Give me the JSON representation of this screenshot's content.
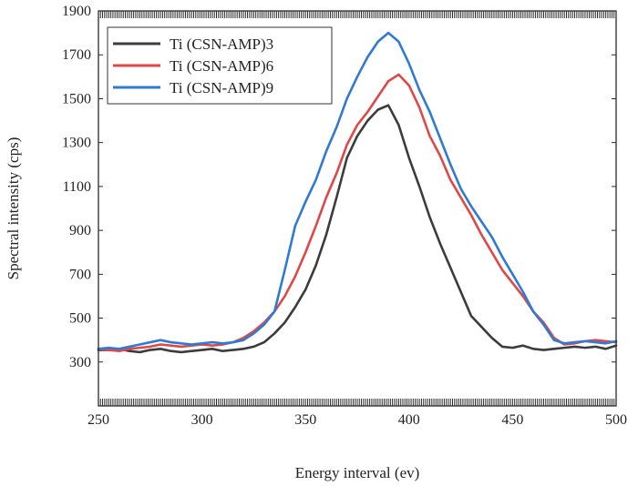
{
  "chart_data": {
    "type": "line",
    "title": "",
    "xlabel": "Energy interval (ev)",
    "ylabel": "Spectral intensity (cps)",
    "xlim": [
      250,
      500
    ],
    "ylim": [
      100,
      1900
    ],
    "x_ticks": [
      250,
      300,
      350,
      400,
      450,
      500
    ],
    "y_ticks": [
      300,
      500,
      700,
      900,
      1100,
      1300,
      1500,
      1700,
      1900
    ],
    "grid": false,
    "legend_position": "top-left",
    "series": [
      {
        "name": "Ti (CSN-AMP)3",
        "color": "#3c3c3c",
        "x": [
          250,
          255,
          260,
          265,
          270,
          275,
          280,
          285,
          290,
          295,
          300,
          305,
          310,
          315,
          320,
          325,
          330,
          335,
          340,
          345,
          350,
          355,
          360,
          365,
          370,
          375,
          380,
          385,
          390,
          395,
          400,
          405,
          410,
          415,
          420,
          425,
          430,
          435,
          440,
          445,
          450,
          455,
          460,
          465,
          470,
          475,
          480,
          485,
          490,
          495,
          500
        ],
        "y": [
          355,
          355,
          360,
          350,
          345,
          355,
          360,
          350,
          345,
          350,
          355,
          360,
          350,
          355,
          360,
          370,
          390,
          430,
          480,
          550,
          630,
          740,
          880,
          1050,
          1230,
          1330,
          1400,
          1450,
          1470,
          1380,
          1230,
          1100,
          960,
          840,
          730,
          620,
          510,
          460,
          410,
          370,
          365,
          375,
          360,
          355,
          360,
          365,
          370,
          365,
          370,
          360,
          375
        ]
      },
      {
        "name": "Ti (CSN-AMP)6",
        "color": "#e04848",
        "x": [
          250,
          255,
          260,
          265,
          270,
          275,
          280,
          285,
          290,
          295,
          300,
          305,
          310,
          315,
          320,
          325,
          330,
          335,
          340,
          345,
          350,
          355,
          360,
          365,
          370,
          375,
          380,
          385,
          390,
          395,
          400,
          405,
          410,
          415,
          420,
          425,
          430,
          435,
          440,
          445,
          450,
          455,
          460,
          465,
          470,
          475,
          480,
          485,
          490,
          495,
          500
        ],
        "y": [
          360,
          355,
          350,
          360,
          365,
          370,
          380,
          375,
          370,
          375,
          380,
          375,
          380,
          390,
          410,
          440,
          480,
          530,
          600,
          690,
          800,
          920,
          1050,
          1160,
          1290,
          1380,
          1440,
          1510,
          1580,
          1610,
          1560,
          1460,
          1330,
          1240,
          1130,
          1050,
          970,
          880,
          800,
          720,
          660,
          600,
          530,
          480,
          410,
          380,
          385,
          395,
          400,
          395,
          390
        ]
      },
      {
        "name": "Ti (CSN-AMP)9",
        "color": "#2f7ad4",
        "x": [
          250,
          255,
          260,
          265,
          270,
          275,
          280,
          285,
          290,
          295,
          300,
          305,
          310,
          315,
          320,
          325,
          330,
          335,
          340,
          345,
          350,
          355,
          360,
          365,
          370,
          375,
          380,
          385,
          390,
          395,
          400,
          405,
          410,
          415,
          420,
          425,
          430,
          435,
          440,
          445,
          450,
          455,
          460,
          465,
          470,
          475,
          480,
          485,
          490,
          495,
          500
        ],
        "y": [
          360,
          365,
          360,
          370,
          380,
          390,
          400,
          390,
          385,
          380,
          385,
          390,
          385,
          390,
          400,
          430,
          470,
          530,
          720,
          920,
          1030,
          1130,
          1260,
          1370,
          1500,
          1600,
          1690,
          1760,
          1800,
          1760,
          1660,
          1540,
          1440,
          1320,
          1200,
          1090,
          1010,
          940,
          870,
          780,
          700,
          620,
          530,
          470,
          400,
          385,
          390,
          395,
          390,
          385,
          395
        ]
      }
    ]
  }
}
